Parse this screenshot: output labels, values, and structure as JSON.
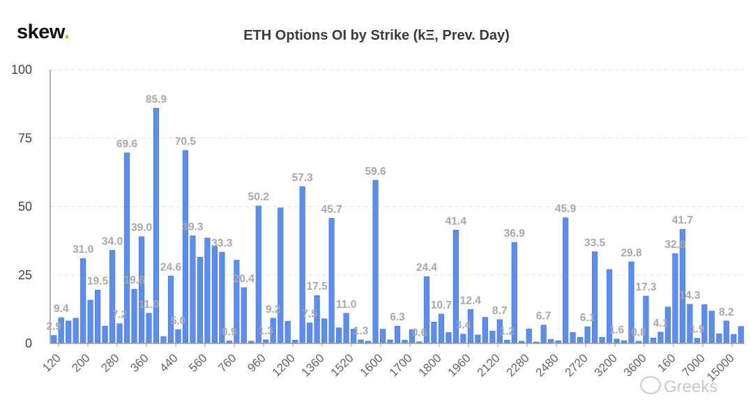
{
  "brand": {
    "name": "skew",
    "dot": "."
  },
  "watermark": "Greeks",
  "colors": {
    "bar": "#5b8ef0",
    "bar_dark": "#3f6fd9",
    "grid": "#e6e6e6",
    "axis": "#9a9a9a",
    "label": "#a8a8a8",
    "tick": "#666666"
  },
  "chart_data": {
    "type": "bar",
    "title": "ETH Options OI by Strike (kΞ, Prev. Day)",
    "xlabel": "",
    "ylabel": "",
    "ylim": [
      0,
      100
    ],
    "yticks": [
      0,
      25,
      50,
      75,
      100
    ],
    "grid": true,
    "x_tick_labels": [
      "120",
      "200",
      "280",
      "360",
      "440",
      "560",
      "760",
      "960",
      "1200",
      "1360",
      "1520",
      "1600",
      "1700",
      "1800",
      "1960",
      "2120",
      "2280",
      "2480",
      "2720",
      "3200",
      "3600",
      "160",
      "7000",
      "15000"
    ],
    "values": [
      2.9,
      9.4,
      8.2,
      9.2,
      31.0,
      15.8,
      19.5,
      6.3,
      34.0,
      7.2,
      69.6,
      19.8,
      39.0,
      11.0,
      85.9,
      2.5,
      24.6,
      5.0,
      70.5,
      39.3,
      31.5,
      38.5,
      35.5,
      33.3,
      0.9,
      30.4,
      20.4,
      0.8,
      50.2,
      1.3,
      9.2,
      49.5,
      8.1,
      1.2,
      57.3,
      7.5,
      17.5,
      9.0,
      45.7,
      5.7,
      11.0,
      5.2,
      1.3,
      0.8,
      59.6,
      5.2,
      1.3,
      6.3,
      1.2,
      5.0,
      0.6,
      24.4,
      7.8,
      10.7,
      4.0,
      41.4,
      3.4,
      12.4,
      3.1,
      9.5,
      4.5,
      8.7,
      1.2,
      36.9,
      0.8,
      5.3,
      0.5,
      6.7,
      1.5,
      1.0,
      45.9,
      4.0,
      2.2,
      6.1,
      33.5,
      2.2,
      27.0,
      1.6,
      1.0,
      29.8,
      0.8,
      17.3,
      2.0,
      4.1,
      13.3,
      32.8,
      41.7,
      14.3,
      1.9,
      14.2,
      11.8,
      3.5,
      8.2,
      3.3,
      6.2
    ],
    "data_labels": {
      "0": "2.9",
      "1": "9.4",
      "4": "31.0",
      "6": "19.5",
      "8": "34.0",
      "9": "7.2",
      "10": "69.6",
      "11": "19.8",
      "12": "39.0",
      "13": "11.0",
      "14": "85.9",
      "16": "24.6",
      "17": "5.0",
      "18": "70.5",
      "19": "39.3",
      "23": "33.3",
      "24": "0.9",
      "26": "20.4",
      "28": "50.2",
      "29": "1.3",
      "30": "9.2",
      "34": "57.3",
      "35": "7.5",
      "36": "17.5",
      "38": "45.7",
      "40": "11.0",
      "42": "1.3",
      "44": "59.6",
      "47": "6.3",
      "50": "0.6",
      "51": "24.4",
      "53": "10.7",
      "55": "41.4",
      "56": "3.4",
      "57": "12.4",
      "61": "8.7",
      "62": "1.2",
      "63": "36.9",
      "67": "6.7",
      "70": "45.9",
      "73": "6.1",
      "74": "33.5",
      "77": "1.6",
      "79": "29.8",
      "80": "0.8",
      "81": "17.3",
      "83": "4.1",
      "85": "32.8",
      "86": "41.7",
      "87": "14.3",
      "88": "1.9",
      "92": "8.2"
    }
  }
}
